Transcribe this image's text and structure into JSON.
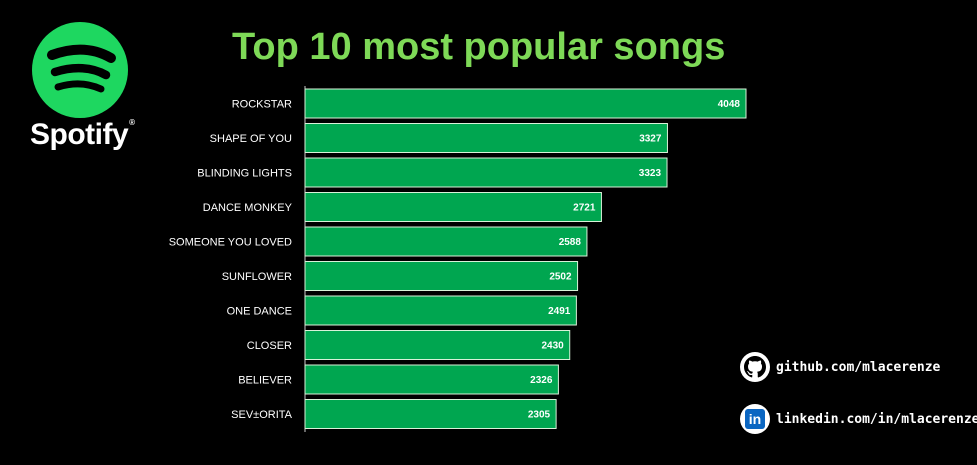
{
  "brand": {
    "name": "Spotify",
    "reg_mark": "®",
    "icon": "spotify-logo-icon",
    "color": "#1ed760"
  },
  "title_color": "#7ed957",
  "bar_color": "#00a650",
  "chart_data": {
    "type": "bar",
    "orientation": "horizontal",
    "title": "Top 10 most popular songs",
    "xlabel": "",
    "ylabel": "",
    "xlim": [
      0,
      4500
    ],
    "categories": [
      "ROCKSTAR",
      "SHAPE OF YOU",
      "BLINDING LIGHTS",
      "DANCE MONKEY",
      "SOMEONE YOU LOVED",
      "SUNFLOWER",
      "ONE DANCE",
      "CLOSER",
      "BELIEVER",
      "SEV±ORITA"
    ],
    "values": [
      4048,
      3327,
      3323,
      2721,
      2588,
      2502,
      2491,
      2430,
      2326,
      2305
    ],
    "data_labels": true,
    "grid": false,
    "legend": "none"
  },
  "social": {
    "github": {
      "icon": "github-icon",
      "text": "github.com/mlacerenze"
    },
    "linkedin": {
      "icon": "linkedin-icon",
      "icon_text": "in",
      "text": "linkedin.com/in/mlacerenze/"
    }
  }
}
